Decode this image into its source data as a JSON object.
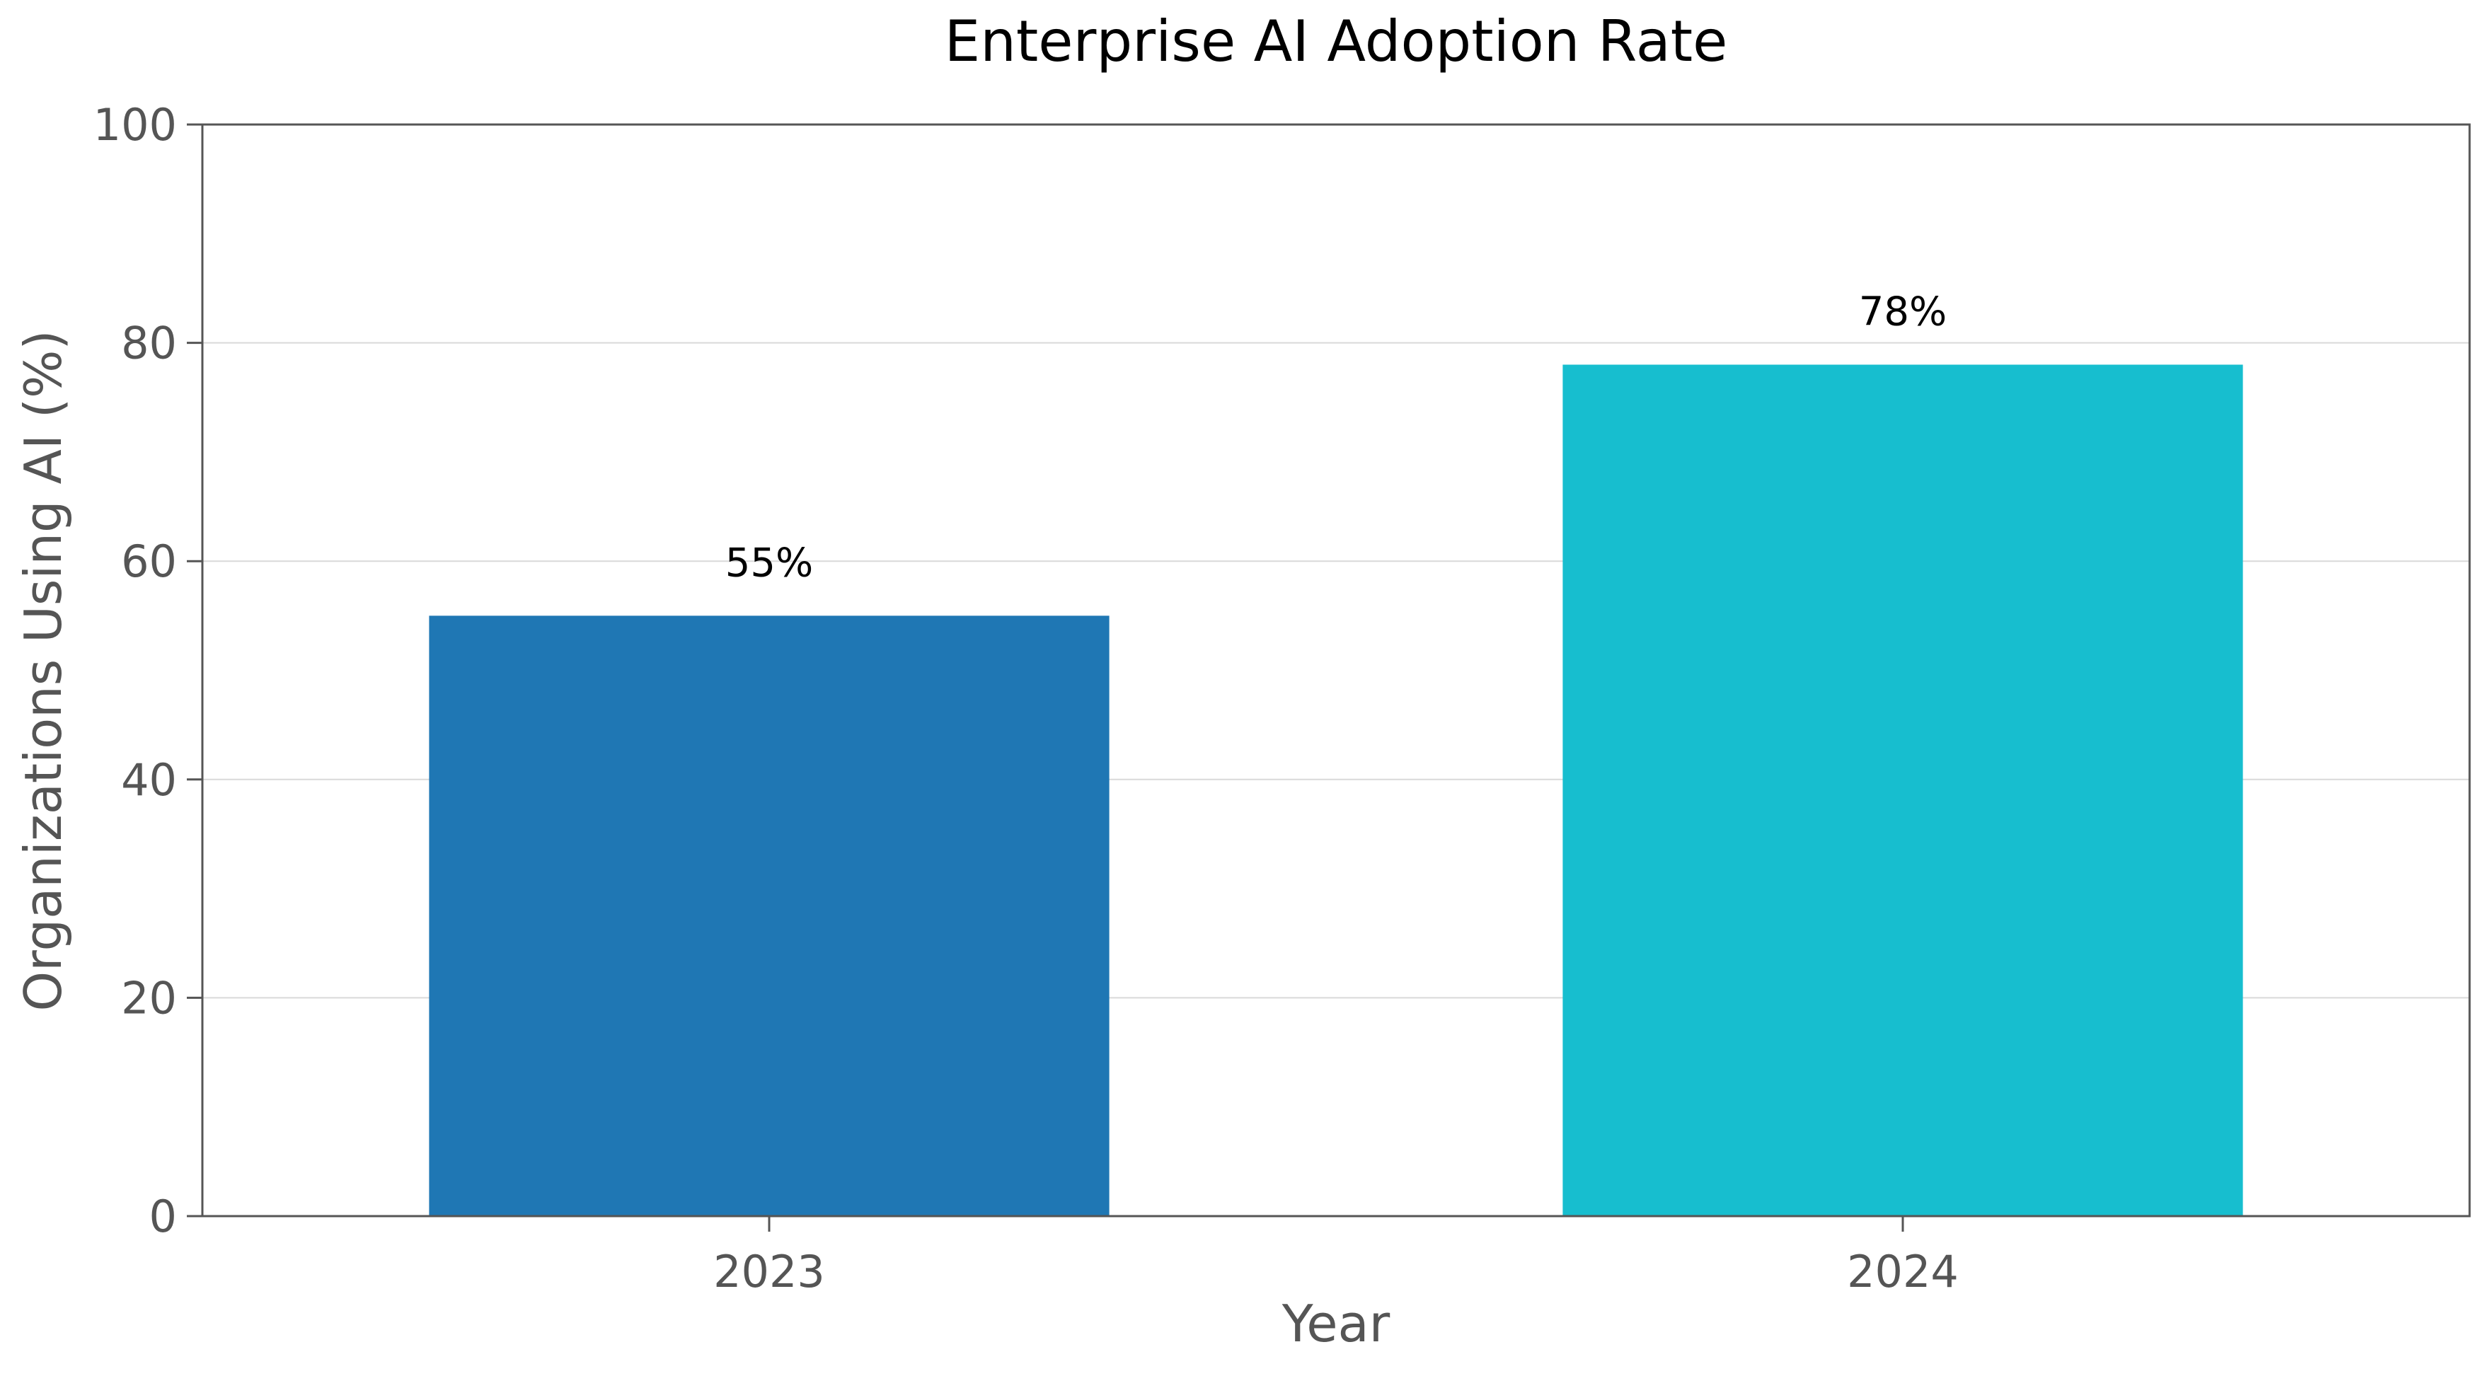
{
  "chart_data": {
    "type": "bar",
    "title": "Enterprise AI Adoption Rate",
    "xlabel": "Year",
    "ylabel": "Organizations Using AI (%)",
    "categories": [
      "2023",
      "2024"
    ],
    "values": [
      55,
      78
    ],
    "data_labels": [
      "55%",
      "78%"
    ],
    "bar_colors": [
      "#1f77b4",
      "#17becf"
    ],
    "ylim": [
      0,
      100
    ],
    "yticks": [
      0,
      20,
      40,
      60,
      80,
      100
    ],
    "ytick_labels": [
      "0",
      "20",
      "40",
      "60",
      "80",
      "100"
    ],
    "grid": "horizontal",
    "legend": "none"
  },
  "colors": {
    "grid": "#d9d9d9",
    "axis": "#555555",
    "tick_text": "#555555",
    "title_text": "#000000",
    "data_label_text": "#000000"
  }
}
